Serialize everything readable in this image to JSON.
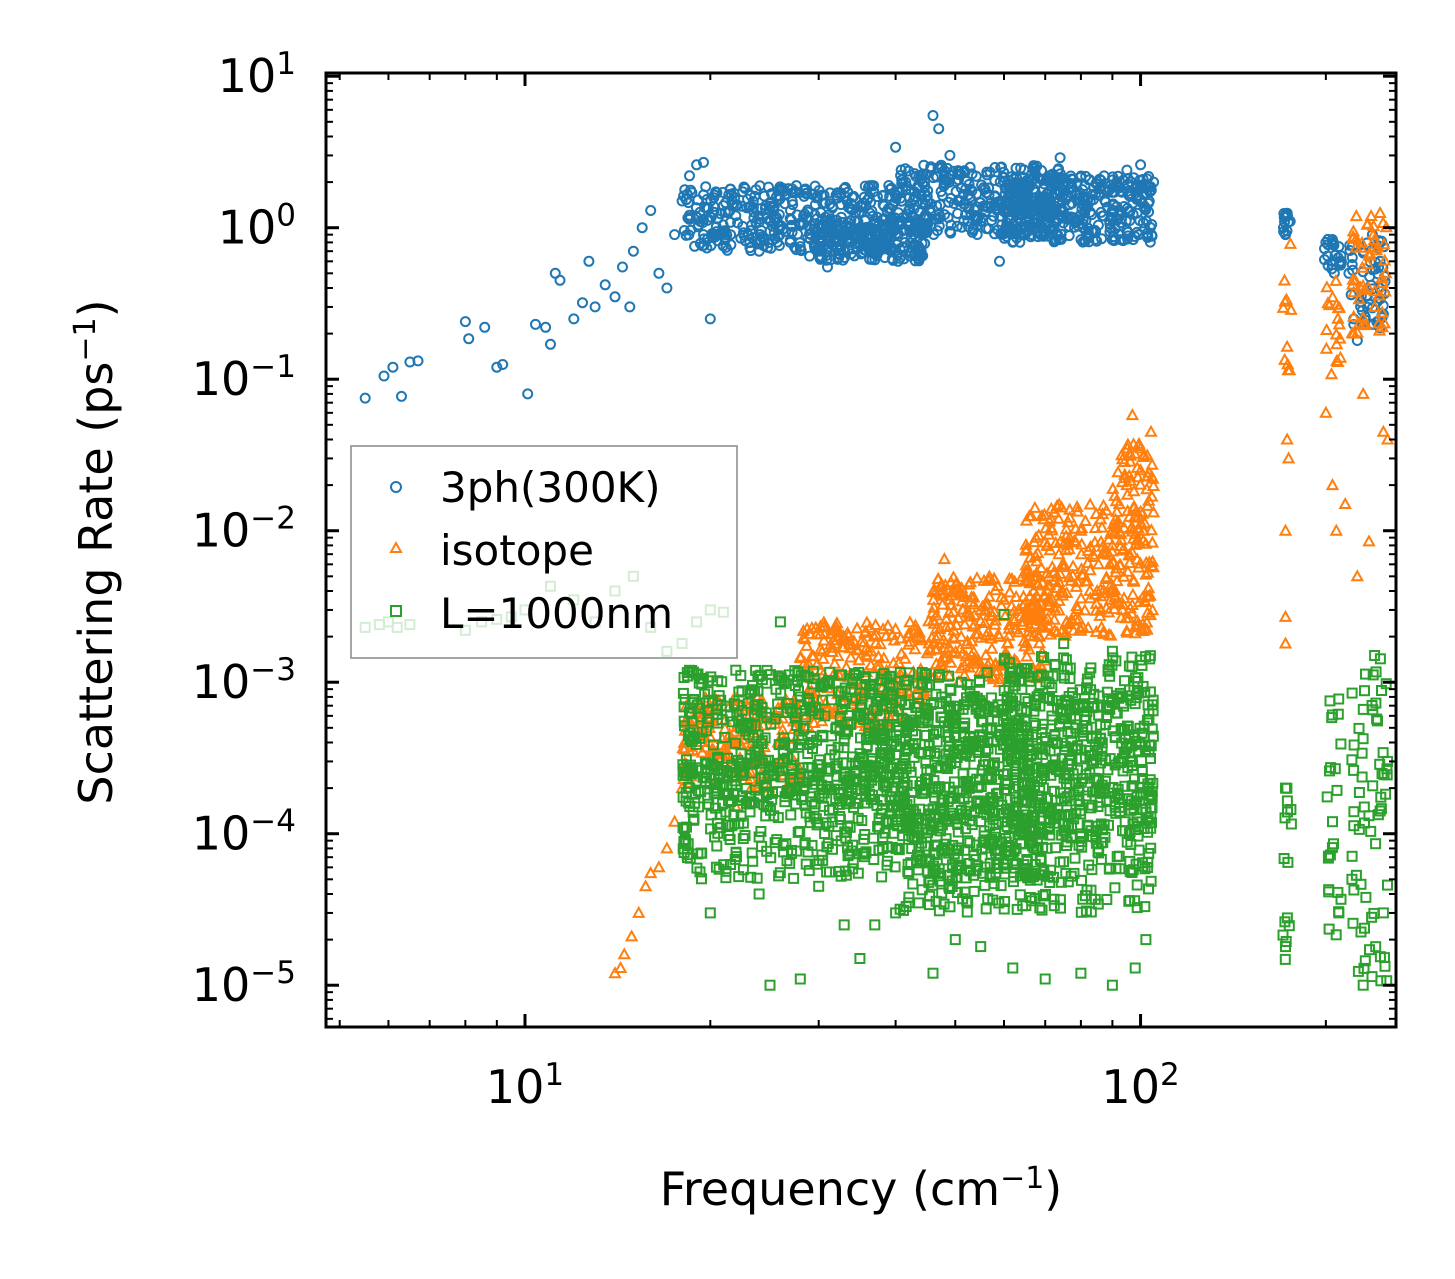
{
  "chart_data": {
    "type": "scatter",
    "title": "",
    "xlabel": {
      "base": "Frequency (cm",
      "sup": "−1",
      "close": ")"
    },
    "ylabel": {
      "base": "Scattering Rate (ps",
      "sup": "−1",
      "close": ")"
    },
    "xscale": "log",
    "yscale": "log",
    "xlim": [
      4.75,
      260
    ],
    "ylim": [
      5.3e-06,
      10.5
    ],
    "x_ticks": [
      {
        "value": 10,
        "base": "10",
        "exp": "1"
      },
      {
        "value": 100,
        "base": "10",
        "exp": "2"
      }
    ],
    "y_ticks": [
      {
        "value": 10,
        "base": "10",
        "exp": "1"
      },
      {
        "value": 1,
        "base": "10",
        "exp": "0"
      },
      {
        "value": 0.1,
        "base": "10",
        "exp": "−1"
      },
      {
        "value": 0.01,
        "base": "10",
        "exp": "−2"
      },
      {
        "value": 0.001,
        "base": "10",
        "exp": "−3"
      },
      {
        "value": 0.0001,
        "base": "10",
        "exp": "−4"
      },
      {
        "value": 1e-05,
        "base": "10",
        "exp": "−5"
      }
    ],
    "legend_position": "center-left",
    "series": [
      {
        "name": "3ph(300K)",
        "marker": "circle",
        "color": "#1f77b4",
        "points": [
          [
            5.5,
            0.075
          ],
          [
            5.9,
            0.105
          ],
          [
            6.1,
            0.12
          ],
          [
            6.3,
            0.077
          ],
          [
            6.5,
            0.13
          ],
          [
            6.7,
            0.132
          ],
          [
            8.0,
            0.24
          ],
          [
            8.1,
            0.185
          ],
          [
            8.6,
            0.22
          ],
          [
            9.0,
            0.12
          ],
          [
            9.2,
            0.125
          ],
          [
            10.1,
            0.08
          ],
          [
            10.4,
            0.23
          ],
          [
            10.8,
            0.22
          ],
          [
            11.0,
            0.17
          ],
          [
            11.2,
            0.5
          ],
          [
            11.4,
            0.45
          ],
          [
            12.0,
            0.25
          ],
          [
            12.4,
            0.32
          ],
          [
            12.7,
            0.6
          ],
          [
            13.0,
            0.3
          ],
          [
            13.5,
            0.42
          ],
          [
            14.0,
            0.35
          ],
          [
            14.4,
            0.55
          ],
          [
            14.8,
            0.3
          ],
          [
            15.0,
            0.7
          ],
          [
            15.5,
            1.0
          ],
          [
            16.0,
            1.3
          ],
          [
            16.5,
            0.5
          ],
          [
            17.0,
            0.4
          ],
          [
            17.5,
            0.9
          ],
          [
            18.0,
            1.5
          ],
          [
            18.5,
            2.2
          ],
          [
            19.0,
            2.6
          ],
          [
            19.5,
            2.7
          ],
          [
            20.0,
            0.25
          ],
          [
            20.5,
            1.7
          ],
          [
            21.0,
            1.4
          ],
          [
            22.0,
            1.2
          ],
          [
            23.0,
            0.9
          ],
          [
            24.0,
            0.7
          ],
          [
            25.0,
            0.95
          ],
          [
            26.0,
            1.8
          ],
          [
            27.0,
            1.3
          ],
          [
            28.0,
            0.75
          ],
          [
            29.0,
            0.65
          ],
          [
            30.0,
            0.7
          ],
          [
            31.0,
            0.55
          ],
          [
            33.0,
            0.7
          ],
          [
            35.0,
            1.0
          ],
          [
            37.0,
            0.8
          ],
          [
            39.0,
            1.9
          ],
          [
            40.0,
            3.4
          ],
          [
            42.0,
            1.3
          ],
          [
            44.0,
            2.2
          ],
          [
            46.0,
            5.5
          ],
          [
            47.0,
            4.5
          ],
          [
            49.0,
            3.0
          ],
          [
            52.0,
            1.8
          ],
          [
            55.0,
            1.1
          ],
          [
            58.0,
            1.6
          ],
          [
            59.0,
            0.6
          ],
          [
            62.0,
            1.4
          ],
          [
            66.0,
            1.9
          ],
          [
            70.0,
            1.5
          ],
          [
            74.0,
            2.9
          ],
          [
            78.0,
            1.1
          ],
          [
            82.0,
            0.85
          ],
          [
            86.0,
            1.8
          ],
          [
            90.0,
            1.3
          ],
          [
            95.0,
            2.4
          ],
          [
            100.0,
            2.6
          ],
          [
            103.0,
            1.9
          ],
          [
            105.0,
            2.0
          ],
          [
            172.0,
            1.2
          ],
          [
            172.0,
            0.9
          ],
          [
            175.0,
            1.1
          ],
          [
            200.0,
            0.8
          ],
          [
            205.0,
            0.6
          ],
          [
            210.0,
            0.75
          ],
          [
            218.0,
            0.5
          ],
          [
            222.0,
            0.25
          ],
          [
            225.0,
            0.18
          ],
          [
            230.0,
            0.7
          ],
          [
            238.0,
            0.9
          ],
          [
            245.0,
            0.6
          ]
        ],
        "bands": [
          {
            "x": [
              18.0,
              40.0
            ],
            "y": [
              0.7,
              1.9
            ],
            "density": 6
          },
          {
            "x": [
              30.0,
              45.0
            ],
            "y": [
              0.6,
              1.2
            ],
            "density": 6
          },
          {
            "x": [
              40.0,
              75.0
            ],
            "y": [
              0.9,
              2.6
            ],
            "density": 7
          },
          {
            "x": [
              60.0,
              105.0
            ],
            "y": [
              0.8,
              2.2
            ],
            "density": 8
          },
          {
            "x": [
              170.0,
              176.0
            ],
            "y": [
              0.8,
              1.25
            ],
            "density": 4
          },
          {
            "x": [
              198.0,
              212.0
            ],
            "y": [
              0.5,
              0.85
            ],
            "density": 4
          },
          {
            "x": [
              218.0,
              250.0
            ],
            "y": [
              0.2,
              0.95
            ],
            "density": 5
          }
        ]
      },
      {
        "name": "isotope",
        "marker": "triangle",
        "color": "#ff7f0e",
        "points": [
          [
            14.0,
            1.2e-05
          ],
          [
            14.3,
            1.3e-05
          ],
          [
            14.5,
            1.6e-05
          ],
          [
            14.9,
            2.1e-05
          ],
          [
            15.3,
            3e-05
          ],
          [
            15.7,
            4.5e-05
          ],
          [
            16.0,
            5.5e-05
          ],
          [
            16.5,
            6e-05
          ],
          [
            17.0,
            8e-05
          ],
          [
            17.5,
            0.00012
          ],
          [
            18.0,
            0.0002
          ],
          [
            18.5,
            0.00035
          ],
          [
            19.0,
            0.0005
          ],
          [
            20.5,
            0.0002
          ],
          [
            22.0,
            0.00015
          ],
          [
            24.0,
            0.0003
          ],
          [
            28.0,
            0.0005
          ],
          [
            33.0,
            0.0008
          ],
          [
            38.0,
            0.0012
          ],
          [
            42.0,
            0.002
          ],
          [
            48.0,
            0.0065
          ],
          [
            55.0,
            0.003
          ],
          [
            60.0,
            0.0035
          ],
          [
            68.0,
            0.0045
          ],
          [
            75.0,
            0.006
          ],
          [
            80.0,
            0.01
          ],
          [
            85.0,
            0.004
          ],
          [
            90.0,
            0.008
          ],
          [
            95.0,
            0.02
          ],
          [
            97.0,
            0.058
          ],
          [
            100.0,
            0.035
          ],
          [
            104.0,
            0.045
          ],
          [
            172.0,
            0.0027
          ],
          [
            172.0,
            0.0018
          ],
          [
            173.0,
            0.04
          ],
          [
            174.0,
            0.03
          ],
          [
            172.0,
            0.01
          ],
          [
            200.0,
            0.06
          ],
          [
            205.0,
            0.02
          ],
          [
            208.0,
            0.01
          ],
          [
            215.0,
            0.015
          ],
          [
            222.0,
            0.2
          ],
          [
            225.0,
            0.005
          ],
          [
            230.0,
            0.08
          ],
          [
            235.0,
            0.0085
          ],
          [
            240.0,
            0.3
          ],
          [
            245.0,
            1.25
          ],
          [
            248.0,
            0.045
          ],
          [
            252.0,
            0.04
          ]
        ],
        "bands": [
          {
            "x": [
              18.0,
              28.0
            ],
            "y": [
              0.0002,
              0.0008
            ],
            "density": 5
          },
          {
            "x": [
              28.0,
              45.0
            ],
            "y": [
              0.0005,
              0.0025
            ],
            "density": 6
          },
          {
            "x": [
              45.0,
              70.0
            ],
            "y": [
              0.001,
              0.005
            ],
            "density": 7
          },
          {
            "x": [
              65.0,
              105.0
            ],
            "y": [
              0.002,
              0.015
            ],
            "density": 8
          },
          {
            "x": [
              90.0,
              105.0
            ],
            "y": [
              0.01,
              0.04
            ],
            "density": 4
          },
          {
            "x": [
              170.0,
              176.0
            ],
            "y": [
              0.1,
              0.8
            ],
            "density": 4
          },
          {
            "x": [
              200.0,
              212.0
            ],
            "y": [
              0.1,
              0.5
            ],
            "density": 4
          },
          {
            "x": [
              220.0,
              252.0
            ],
            "y": [
              0.2,
              1.2
            ],
            "density": 5
          }
        ]
      },
      {
        "name": "L=1000nm",
        "marker": "square",
        "color": "#2ca02c",
        "points": [
          [
            5.5,
            0.0023
          ],
          [
            5.8,
            0.0024
          ],
          [
            6.0,
            0.0025
          ],
          [
            6.2,
            0.0023
          ],
          [
            6.5,
            0.0024
          ],
          [
            8.0,
            0.0022
          ],
          [
            8.5,
            0.0025
          ],
          [
            9.0,
            0.0026
          ],
          [
            9.5,
            0.0027
          ],
          [
            10.0,
            0.003
          ],
          [
            11.0,
            0.0043
          ],
          [
            12.0,
            0.0035
          ],
          [
            13.0,
            0.0025
          ],
          [
            14.0,
            0.004
          ],
          [
            15.0,
            0.005
          ],
          [
            16.0,
            0.0023
          ],
          [
            17.0,
            0.0016
          ],
          [
            18.0,
            0.0018
          ],
          [
            19.0,
            0.0025
          ],
          [
            20.0,
            0.003
          ],
          [
            21.0,
            0.0029
          ],
          [
            20.0,
            3e-05
          ],
          [
            22.0,
            0.0012
          ],
          [
            25.0,
            1e-05
          ],
          [
            24.0,
            4e-05
          ],
          [
            26.0,
            0.0025
          ],
          [
            28.0,
            0.0008
          ],
          [
            28.0,
            1.1e-05
          ],
          [
            30.0,
            4.5e-05
          ],
          [
            33.0,
            2.5e-05
          ],
          [
            35.0,
            1.5e-05
          ],
          [
            37.0,
            2.5e-05
          ],
          [
            40.0,
            3e-05
          ],
          [
            42.0,
            3.5e-05
          ],
          [
            46.0,
            1.2e-05
          ],
          [
            50.0,
            2e-05
          ],
          [
            55.0,
            1.8e-05
          ],
          [
            62.0,
            1.3e-05
          ],
          [
            70.0,
            1.1e-05
          ],
          [
            80.0,
            1.2e-05
          ],
          [
            90.0,
            1e-05
          ],
          [
            98.0,
            1.3e-05
          ],
          [
            102.0,
            2e-05
          ],
          [
            60.0,
            0.0028
          ],
          [
            75.0,
            0.0018
          ],
          [
            90.0,
            0.0016
          ],
          [
            172.0,
            1.8e-05
          ],
          [
            172.0,
            0.0002
          ],
          [
            205.0,
            0.00012
          ],
          [
            210.0,
            3e-05
          ],
          [
            230.0,
            1e-05
          ],
          [
            240.0,
            0.0015
          ],
          [
            248.0,
            3e-05
          ],
          [
            252.0,
            0.0003
          ]
        ],
        "bands": [
          {
            "x": [
              18.0,
              40.0
            ],
            "y": [
              0.00015,
              0.0012
            ],
            "density": 7
          },
          {
            "x": [
              18.0,
              35.0
            ],
            "y": [
              5e-05,
              0.0003
            ],
            "density": 4
          },
          {
            "x": [
              35.0,
              70.0
            ],
            "y": [
              5e-05,
              0.0012
            ],
            "density": 8
          },
          {
            "x": [
              40.0,
              105.0
            ],
            "y": [
              3e-05,
              0.0008
            ],
            "density": 8
          },
          {
            "x": [
              60.0,
              105.0
            ],
            "y": [
              0.0001,
              0.0015
            ],
            "density": 7
          },
          {
            "x": [
              170.0,
              176.0
            ],
            "y": [
              1.2e-05,
              0.0002
            ],
            "density": 5
          },
          {
            "x": [
              200.0,
              212.0
            ],
            "y": [
              2e-05,
              0.0009
            ],
            "density": 5
          },
          {
            "x": [
              220.0,
              252.0
            ],
            "y": [
              1e-05,
              0.0015
            ],
            "density": 6
          }
        ]
      }
    ]
  }
}
